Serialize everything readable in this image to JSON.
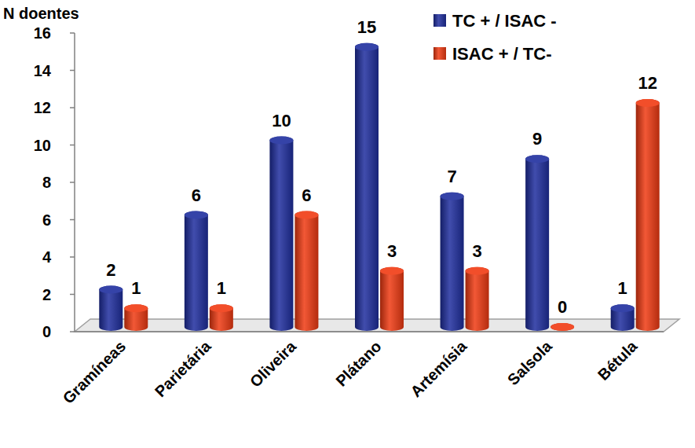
{
  "chart_data": {
    "type": "bar",
    "y_label": "N doentes",
    "categories": [
      "Gramíneas",
      "Parietária",
      "Oliveira",
      "Plátano",
      "Artemísia",
      "Salsola",
      "Bétula"
    ],
    "series": [
      {
        "name": "TC + / ISAC -",
        "color": "#1f2e9e",
        "values": [
          2,
          6,
          10,
          15,
          7,
          9,
          1
        ]
      },
      {
        "name": "ISAC + / TC-",
        "color": "#f03a12",
        "values": [
          1,
          1,
          6,
          3,
          3,
          0,
          12
        ]
      }
    ],
    "ylim": [
      0,
      16
    ],
    "yticks": [
      0,
      2,
      4,
      6,
      8,
      10,
      12,
      14,
      16
    ],
    "grid": false,
    "legend": "upper right",
    "data_labels": true
  }
}
